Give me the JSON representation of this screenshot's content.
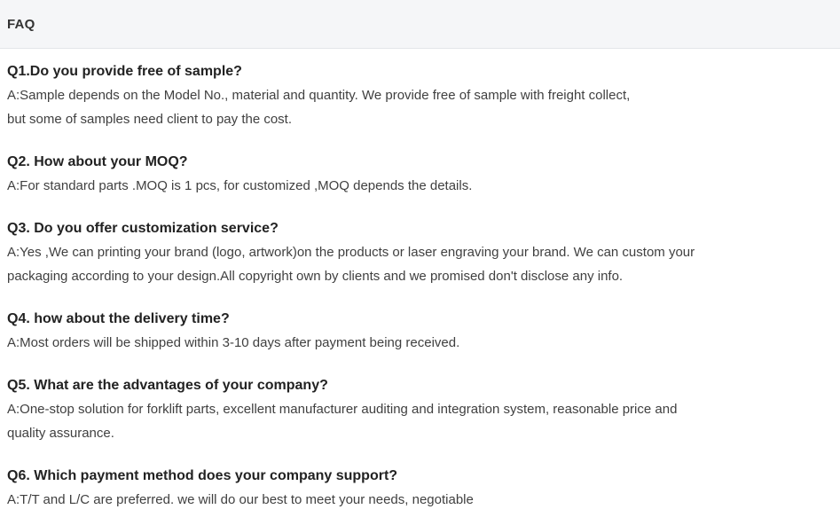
{
  "panel": {
    "title": "FAQ"
  },
  "colors": {
    "header_bg": "#f5f6f8",
    "header_border": "#e3e5e9",
    "question_text": "#222222",
    "answer_text": "#404040"
  },
  "faqs": [
    {
      "question": "Q1.Do you provide free of sample?",
      "answer": "A:Sample depends on the Model No., material and quantity. We provide free of sample with freight collect,\nbut some of samples need client to pay the cost."
    },
    {
      "question": "Q2. How about your MOQ?",
      "answer": "A:For standard parts .MOQ is 1 pcs, for customized ,MOQ depends the details."
    },
    {
      "question": "Q3. Do you offer customization service?",
      "answer": "A:Yes ,We can printing your brand (logo, artwork)on the products or laser engraving your brand. We can custom your\npackaging according to your design.All copyright own by clients and we promised don't disclose any info."
    },
    {
      "question": "Q4. how about the delivery time?",
      "answer": "A:Most orders will be shipped within 3-10 days after payment being received."
    },
    {
      "question": "Q5. What are the advantages of your company?",
      "answer": "A:One-stop solution for forklift parts, excellent manufacturer auditing and integration system, reasonable price and\nquality assurance."
    },
    {
      "question": "Q6. Which payment method does your company support?",
      "answer": "A:T/T and L/C are preferred. we will do our best to meet your needs, negotiable"
    }
  ]
}
